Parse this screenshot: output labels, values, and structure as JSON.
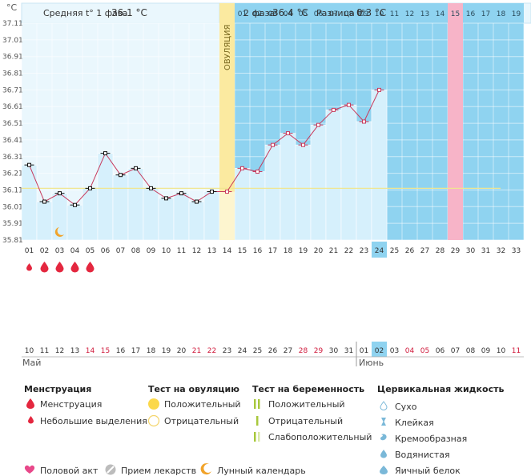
{
  "y_unit": "°C",
  "header": {
    "phase1_label": "Средняя t° 1 фаза",
    "phase1_value": "36.1 °C",
    "phase2_label": "2 фаза",
    "phase2_value": "36.4 °C",
    "diff_label": "Разница t°",
    "diff_value": "0.3 °C"
  },
  "ovulation_label": "ОВУЛЯЦИЯ",
  "chart_data": {
    "type": "line",
    "title": "Базальная температура",
    "ylabel": "°C",
    "ylim": [
      35.81,
      37.11
    ],
    "y_ticks": [
      "37.11",
      "37.01",
      "36.91",
      "36.81",
      "36.71",
      "36.61",
      "36.51",
      "36.41",
      "36.31",
      "36.21",
      "36.11",
      "36.01",
      "35.91",
      "35.81"
    ],
    "cycle_days": [
      "01",
      "02",
      "03",
      "04",
      "05",
      "06",
      "07",
      "08",
      "09",
      "10",
      "11",
      "12",
      "13",
      "14",
      "15",
      "16",
      "17",
      "18",
      "19",
      "20",
      "21",
      "22",
      "23",
      "24",
      "25",
      "26",
      "27",
      "28",
      "29",
      "30",
      "31",
      "32",
      "33"
    ],
    "cycle_day_current": "24",
    "top_days_phase2": [
      "01",
      "02",
      "03",
      "04",
      "05",
      "06",
      "07",
      "08",
      "09",
      "10",
      "11",
      "12",
      "13",
      "14",
      "15",
      "16",
      "17",
      "18",
      "19"
    ],
    "top_day_highlight": "15",
    "ovulation_day": "14",
    "coverline": 36.12,
    "temperatures": [
      36.26,
      36.04,
      36.09,
      36.02,
      36.12,
      36.33,
      36.2,
      36.24,
      36.12,
      36.06,
      36.09,
      36.04,
      36.1,
      36.1,
      36.24,
      36.22,
      36.38,
      36.45,
      36.38,
      36.5,
      36.59,
      36.62,
      36.52,
      36.71
    ],
    "moon_day": "03",
    "menstruation_days": [
      "01",
      "02",
      "03",
      "04",
      "05"
    ],
    "light_spotting_days": [
      "01"
    ],
    "calendar_dates": [
      "10",
      "11",
      "12",
      "13",
      "14",
      "15",
      "16",
      "17",
      "18",
      "19",
      "20",
      "21",
      "22",
      "23",
      "24",
      "25",
      "26",
      "27",
      "28",
      "29",
      "30",
      "31",
      "01",
      "02",
      "03",
      "04",
      "05",
      "06",
      "07",
      "08",
      "09",
      "10",
      "11"
    ],
    "weekend_dates_idx": [
      4,
      5,
      11,
      12,
      18,
      19,
      25,
      26,
      32
    ],
    "current_date_idx": 23,
    "month_may": "Май",
    "month_june": "Июнь"
  },
  "legend": {
    "menstruation": {
      "title": "Менструация",
      "items": [
        "Менструация",
        "Небольшие выделения"
      ]
    },
    "ovulation_test": {
      "title": "Тест на овуляцию",
      "items": [
        "Положительный",
        "Отрицательный"
      ]
    },
    "pregnancy_test": {
      "title": "Тест на беременность",
      "items": [
        "Положительный",
        "Отрицательный",
        "Слабоположительный"
      ]
    },
    "cervical": {
      "title": "Цервикальная жидкость",
      "items": [
        "Сухо",
        "Клейкая",
        "Кремообразная",
        "Водянистая",
        "Яичный белок"
      ]
    },
    "bottom": [
      "Половой акт",
      "Прием лекарств",
      "Лунный календарь"
    ]
  },
  "colors": {
    "phase_bg": "#8fd3f0",
    "pre_bg": "#eaf7fd",
    "bar_fill": "#d6f0fc",
    "ovulation": "#fbeaa0",
    "highlight_day": "#f7b4c8",
    "line": "#c83a5c",
    "coverline": "#f0e690",
    "drop": "#e4273f",
    "weekend": "#d01a3c"
  }
}
